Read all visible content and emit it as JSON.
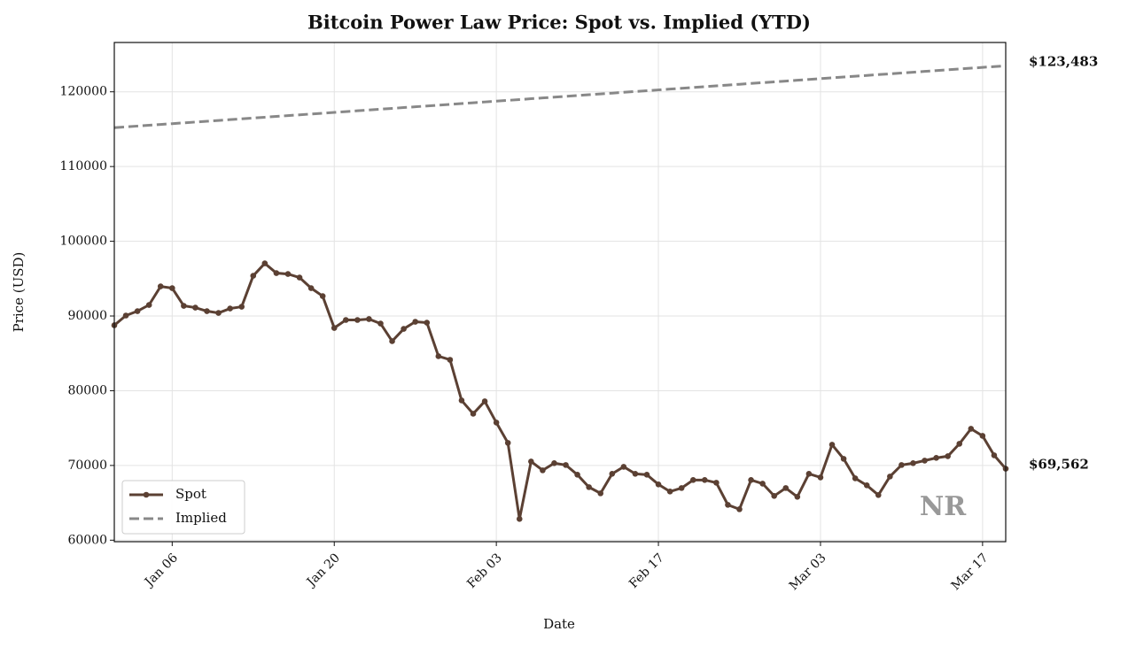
{
  "chart_data": {
    "type": "line",
    "title": "Bitcoin Power Law Price: Spot vs. Implied (YTD)",
    "x_label": "Date",
    "y_label": "Price (USD)",
    "x": [
      "Jan 01",
      "Jan 02",
      "Jan 03",
      "Jan 04",
      "Jan 05",
      "Jan 06",
      "Jan 07",
      "Jan 08",
      "Jan 09",
      "Jan 10",
      "Jan 11",
      "Jan 12",
      "Jan 13",
      "Jan 14",
      "Jan 15",
      "Jan 16",
      "Jan 17",
      "Jan 18",
      "Jan 19",
      "Jan 20",
      "Jan 21",
      "Jan 22",
      "Jan 23",
      "Jan 24",
      "Jan 25",
      "Jan 26",
      "Jan 27",
      "Jan 28",
      "Jan 29",
      "Jan 30",
      "Jan 31",
      "Feb 01",
      "Feb 02",
      "Feb 03",
      "Feb 04",
      "Feb 05",
      "Feb 06",
      "Feb 07",
      "Feb 08",
      "Feb 09",
      "Feb 10",
      "Feb 11",
      "Feb 12",
      "Feb 13",
      "Feb 14",
      "Feb 15",
      "Feb 16",
      "Feb 17",
      "Feb 18",
      "Feb 19",
      "Feb 20",
      "Feb 21",
      "Feb 22",
      "Feb 23",
      "Feb 24",
      "Feb 25",
      "Feb 26",
      "Feb 27",
      "Feb 28",
      "Mar 01",
      "Mar 02",
      "Mar 03",
      "Mar 04",
      "Mar 05",
      "Mar 06",
      "Mar 07",
      "Mar 08",
      "Mar 09",
      "Mar 10",
      "Mar 11",
      "Mar 12",
      "Mar 13",
      "Mar 14",
      "Mar 15",
      "Mar 16",
      "Mar 17",
      "Mar 18",
      "Mar 19"
    ],
    "xticks": [
      "Jan 06",
      "Jan 20",
      "Feb 03",
      "Feb 17",
      "Mar 03",
      "Mar 17"
    ],
    "ylim": [
      59800,
      126600
    ],
    "yticks": [
      60000,
      70000,
      80000,
      90000,
      100000,
      110000,
      120000
    ],
    "grid": true,
    "legend_position": "lower left",
    "watermark": "NR",
    "series": [
      {
        "name": "Spot",
        "color": "#5b4033",
        "style": "solid",
        "markers": true,
        "values": [
          88760,
          90060,
          90650,
          91480,
          93960,
          93730,
          91360,
          91120,
          90650,
          90410,
          91000,
          91240,
          95380,
          97040,
          95740,
          95620,
          95150,
          93730,
          92660,
          88400,
          89470,
          89470,
          89590,
          88990,
          86630,
          88280,
          89230,
          89110,
          84620,
          84140,
          78700,
          76920,
          78580,
          75740,
          73020,
          62840,
          70530,
          69350,
          70300,
          70060,
          68760,
          67100,
          66270,
          68880,
          69820,
          68880,
          68760,
          67460,
          66510,
          66980,
          68050,
          68050,
          67690,
          64730,
          64140,
          68050,
          67570,
          65920,
          66980,
          65800,
          68880,
          68400,
          72780,
          70890,
          68280,
          67340,
          66040,
          68520,
          70060,
          70300,
          70650,
          71010,
          71240,
          72900,
          74910,
          73960,
          71360,
          69562
        ],
        "value_labels": [
          null,
          null,
          null,
          null,
          null,
          null,
          null,
          null,
          null,
          null,
          null,
          null,
          null,
          null,
          null,
          null,
          null,
          null,
          null,
          null,
          null,
          null,
          null,
          null,
          null,
          null,
          null,
          null,
          null,
          null,
          null,
          null,
          null,
          null,
          null,
          null,
          null,
          null,
          null,
          null,
          null,
          null,
          null,
          null,
          null,
          null,
          null,
          null,
          null,
          null,
          null,
          null,
          null,
          null,
          null,
          null,
          null,
          null,
          null,
          null,
          null,
          null,
          null,
          null,
          null,
          null,
          null,
          null,
          null,
          null,
          null,
          null,
          null,
          null,
          null,
          null,
          null,
          "$69,562"
        ]
      },
      {
        "name": "Implied",
        "color": "#888888",
        "style": "dashed",
        "markers": false,
        "values": [
          115200,
          115308,
          115415,
          115523,
          115630,
          115738,
          115845,
          115953,
          116061,
          116168,
          116276,
          116383,
          116491,
          116598,
          116706,
          116814,
          116921,
          117029,
          117136,
          117244,
          117351,
          117459,
          117567,
          117674,
          117782,
          117889,
          117997,
          118104,
          118212,
          118320,
          118427,
          118535,
          118642,
          118750,
          118857,
          118965,
          119073,
          119180,
          119288,
          119395,
          119503,
          119610,
          119718,
          119826,
          119933,
          120041,
          120148,
          120256,
          120363,
          120471,
          120579,
          120686,
          120794,
          120901,
          121009,
          121116,
          121224,
          121332,
          121439,
          121547,
          121654,
          121762,
          121869,
          121977,
          122085,
          122192,
          122300,
          122407,
          122515,
          122622,
          122730,
          122838,
          122945,
          123053,
          123160,
          123268,
          123375,
          123483
        ],
        "value_labels": [
          null,
          null,
          null,
          null,
          null,
          null,
          null,
          null,
          null,
          null,
          null,
          null,
          null,
          null,
          null,
          null,
          null,
          null,
          null,
          null,
          null,
          null,
          null,
          null,
          null,
          null,
          null,
          null,
          null,
          null,
          null,
          null,
          null,
          null,
          null,
          null,
          null,
          null,
          null,
          null,
          null,
          null,
          null,
          null,
          null,
          null,
          null,
          null,
          null,
          null,
          null,
          null,
          null,
          null,
          null,
          null,
          null,
          null,
          null,
          null,
          null,
          null,
          null,
          null,
          null,
          null,
          null,
          null,
          null,
          null,
          null,
          null,
          null,
          null,
          null,
          null,
          null,
          "$123,483"
        ]
      }
    ]
  }
}
